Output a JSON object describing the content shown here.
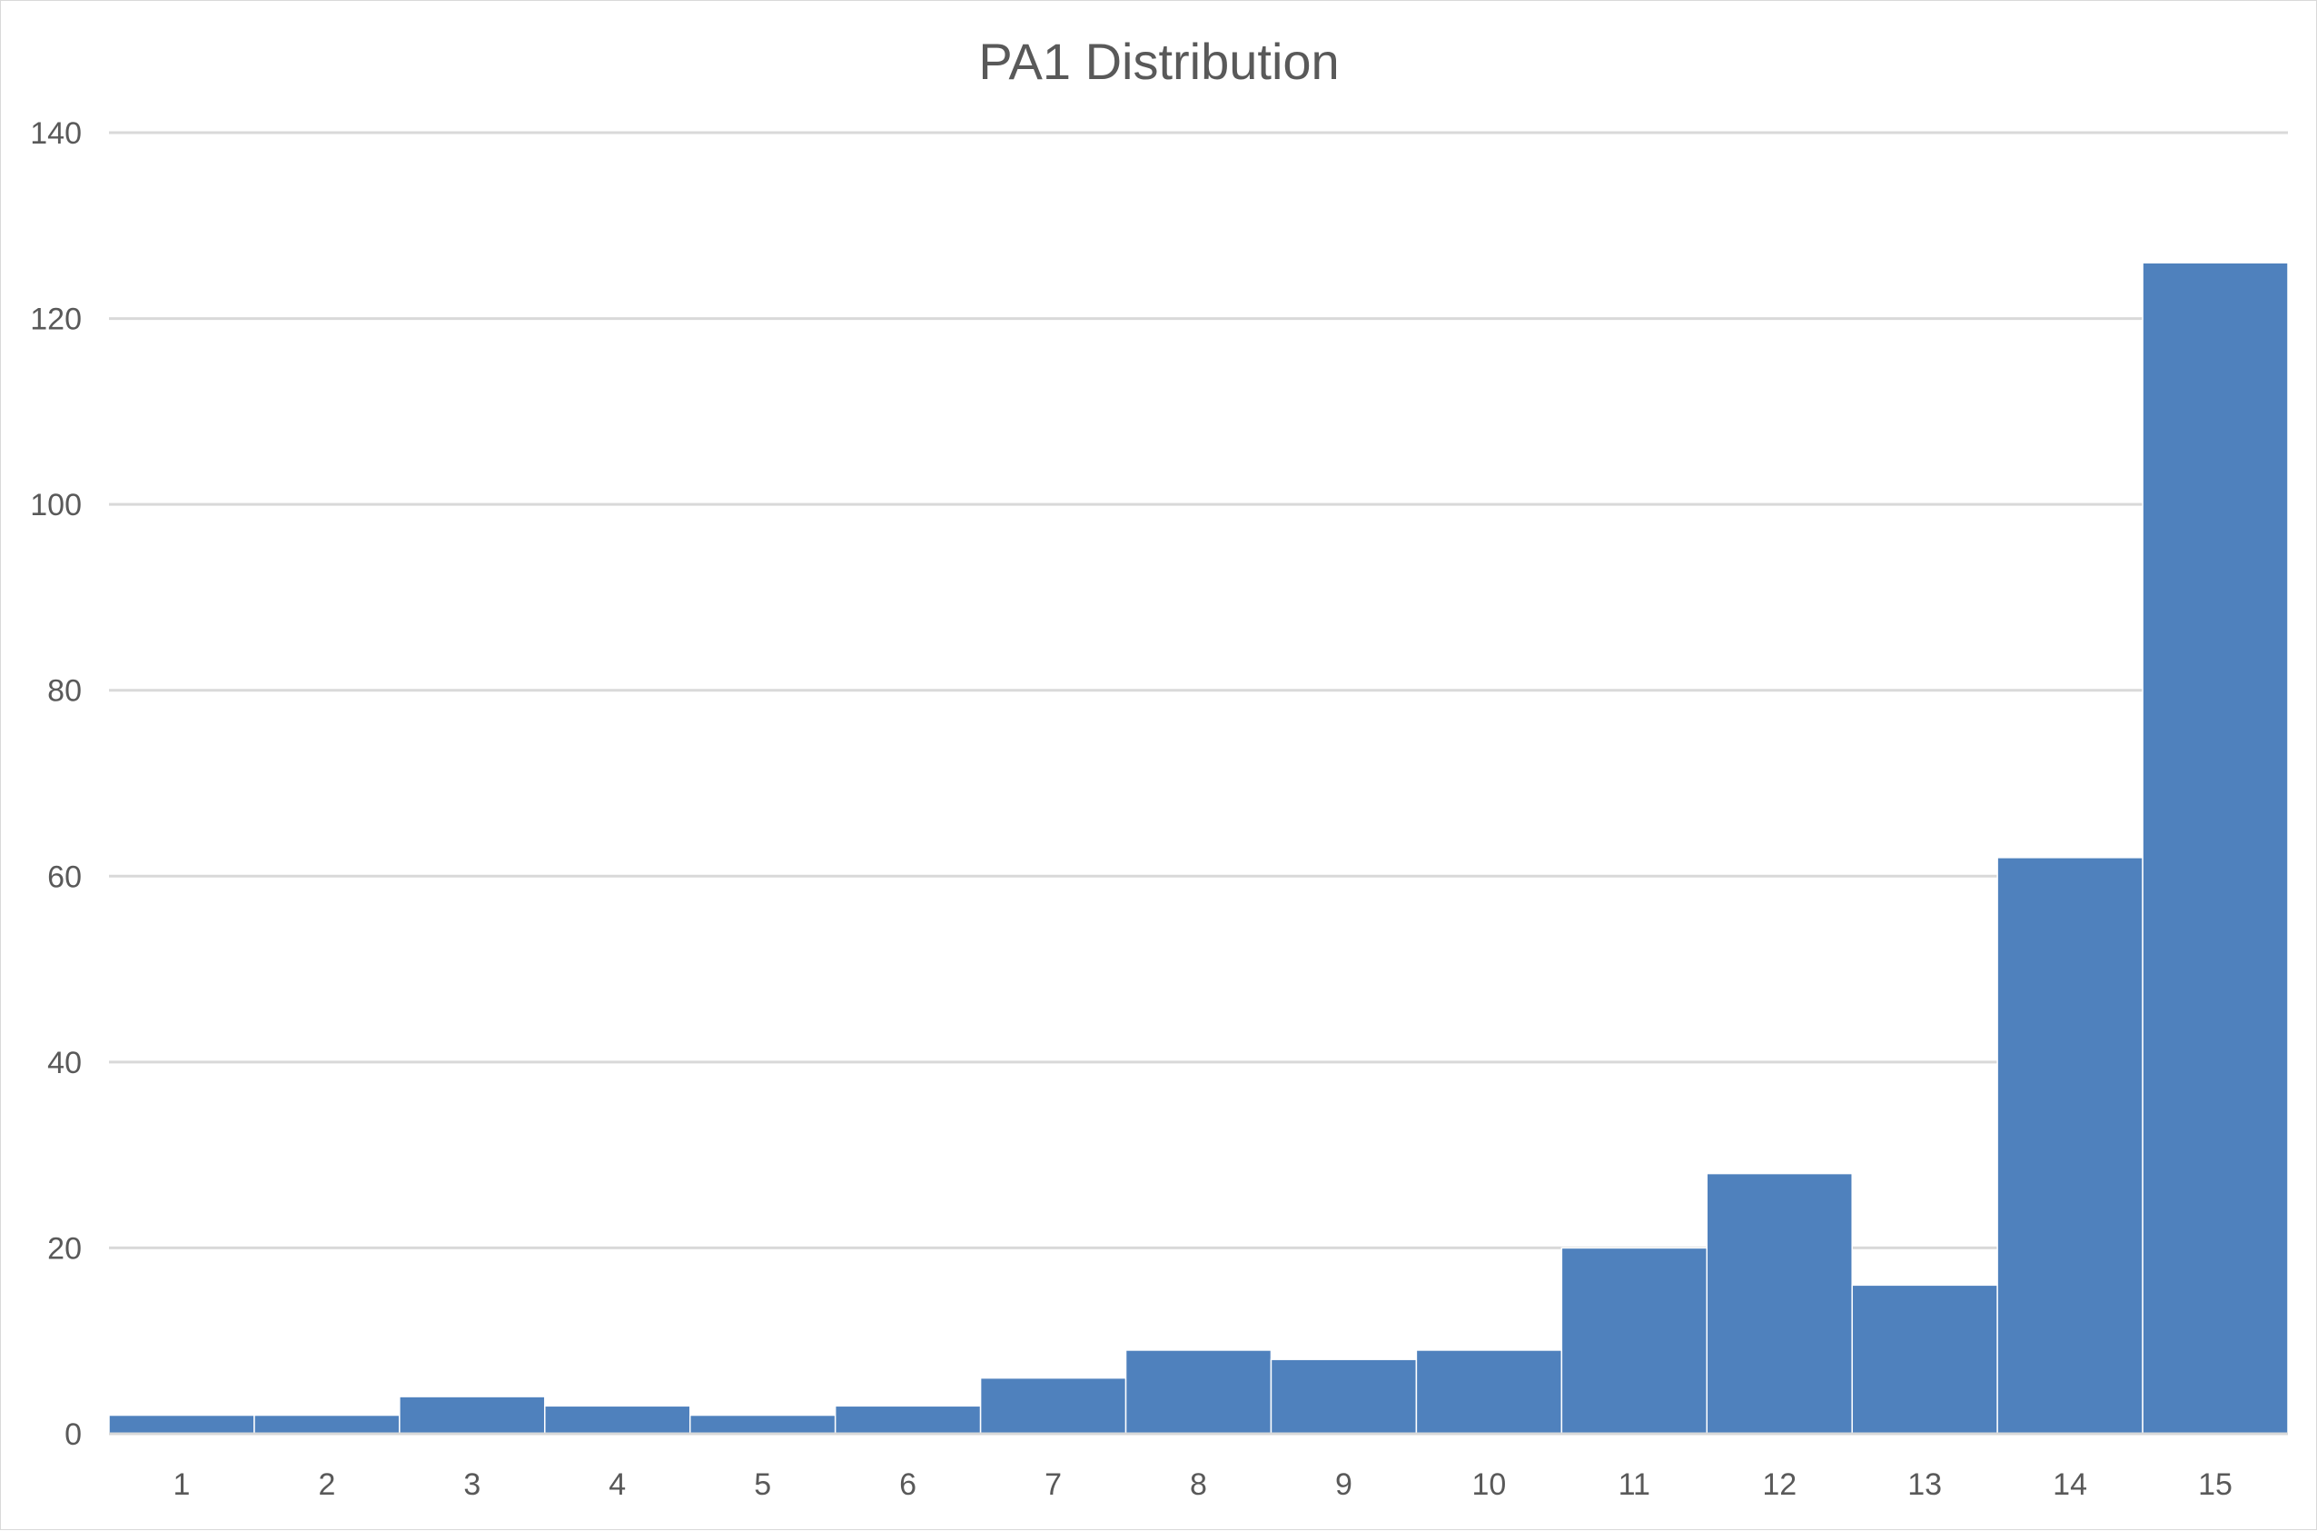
{
  "chart_data": {
    "type": "bar",
    "title": "PA1 Distribution",
    "xlabel": "",
    "ylabel": "",
    "categories": [
      "1",
      "2",
      "3",
      "4",
      "5",
      "6",
      "7",
      "8",
      "9",
      "10",
      "11",
      "12",
      "13",
      "14",
      "15"
    ],
    "values": [
      2,
      2,
      4,
      3,
      2,
      3,
      6,
      9,
      8,
      9,
      20,
      28,
      16,
      62,
      126
    ],
    "ylim": [
      0,
      140
    ],
    "yticks": [
      "0",
      "20",
      "40",
      "60",
      "80",
      "100",
      "120",
      "140"
    ],
    "grid": true,
    "legend": "none",
    "bar_color": "#4f81bd",
    "gridline_color": "#d9d9d9"
  }
}
